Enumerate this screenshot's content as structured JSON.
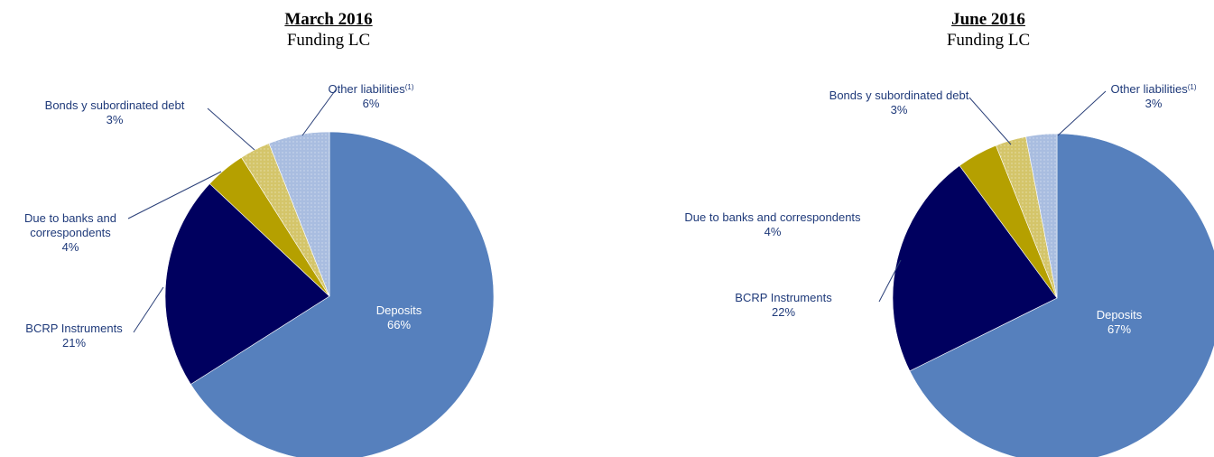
{
  "chart_data": [
    {
      "type": "pie",
      "title": "March 2016",
      "subtitle": "Funding LC",
      "slices": [
        {
          "label": "Deposits",
          "value": 66,
          "value_label": "66%",
          "color": "#5680bd"
        },
        {
          "label": "BCRP Instruments",
          "value": 21,
          "value_label": "21%",
          "color": "#00005f"
        },
        {
          "label": "Due to banks and correspondents",
          "label_lines": [
            "Due to banks and",
            "correspondents"
          ],
          "value": 4,
          "value_label": "4%",
          "color": "#b5a000"
        },
        {
          "label": "Bonds y subordinated debt",
          "value": 3,
          "value_label": "3%",
          "color": "#d4c56a"
        },
        {
          "label": "Other liabilities",
          "label_sup": "(1)",
          "value": 6,
          "value_label": "6%",
          "color": "#a9bde0"
        }
      ]
    },
    {
      "type": "pie",
      "title": "June 2016",
      "subtitle": "Funding LC",
      "slices": [
        {
          "label": "Deposits",
          "value": 67,
          "value_label": "67%",
          "color": "#5680bd"
        },
        {
          "label": "BCRP Instruments",
          "value": 22,
          "value_label": "22%",
          "color": "#00005f"
        },
        {
          "label": "Due to banks and correspondents",
          "label_lines": [
            "Due to banks and correspondents"
          ],
          "value": 4,
          "value_label": "4%",
          "color": "#b5a000"
        },
        {
          "label": "Bonds y subordinated debt",
          "value": 3,
          "value_label": "3%",
          "color": "#d4c56a"
        },
        {
          "label": "Other liabilities",
          "label_sup": "(1)",
          "value": 3,
          "value_label": "3%",
          "color": "#a9bde0"
        }
      ]
    }
  ]
}
